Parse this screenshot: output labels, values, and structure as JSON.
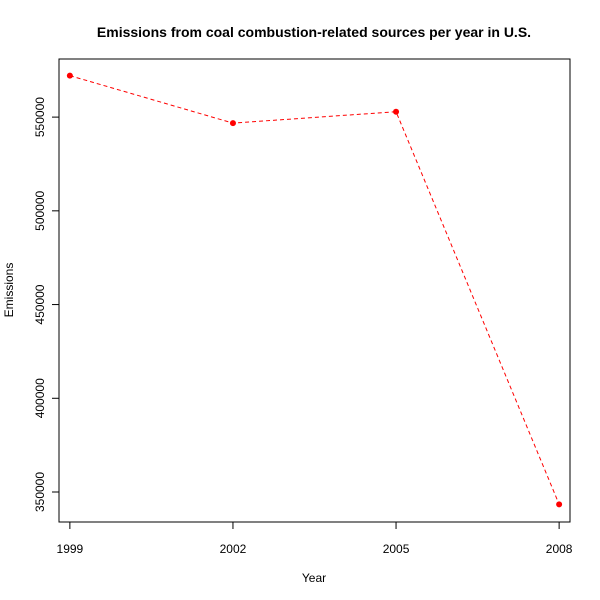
{
  "chart_data": {
    "type": "line",
    "title": "Emissions from coal combustion-related sources per year in U.S.",
    "xlabel": "Year",
    "ylabel": "Emissions",
    "x": [
      1999,
      2002,
      2005,
      2008
    ],
    "series": [
      {
        "values": [
          572126,
          546789,
          552881,
          343432
        ],
        "color": "#ff0000",
        "line_style": "dashed",
        "marker": "filled-circle"
      }
    ],
    "x_ticks": [
      "1999",
      "2002",
      "2005",
      "2008"
    ],
    "y_ticks": [
      "350000",
      "400000",
      "450000",
      "500000",
      "550000"
    ],
    "xlim": [
      1998.8,
      2008.2
    ],
    "ylim": [
      334000,
      581000
    ],
    "grid": false,
    "legend": "none"
  }
}
